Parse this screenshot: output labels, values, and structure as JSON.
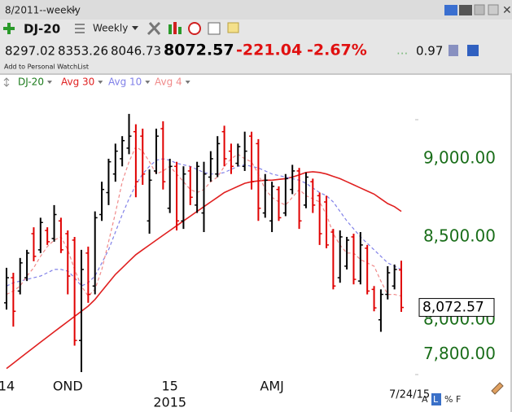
{
  "header": {
    "window_title": "8/2011--weekly",
    "symbol": "DJ-20",
    "period": "Weekly",
    "quote": {
      "open": 8297.02,
      "high": 8353.26,
      "low": 8046.73,
      "close": 8072.57,
      "change": -221.04,
      "change_pct": "-2.67%",
      "ellipsis": "...",
      "ratio": 0.97
    },
    "watchlist_link": "Add to Personal WatchList"
  },
  "chart_data": {
    "type": "ohlc",
    "log_scale": true,
    "ylim": [
      7686,
      9467
    ],
    "yticks": [
      {
        "value": 9000,
        "label": "9,000.00"
      },
      {
        "value": 8500,
        "label": "8,500.00"
      },
      {
        "value": 8000,
        "label": "8,000.00"
      },
      {
        "value": 7800,
        "label": "7,800.00"
      }
    ],
    "tick_color": "#1a6e1a",
    "categories": [
      "14",
      null,
      null,
      null,
      null,
      null,
      null,
      null,
      null,
      "OND",
      null,
      null,
      null,
      null,
      null,
      null,
      null,
      null,
      null,
      null,
      null,
      null,
      null,
      null,
      "15",
      null,
      null,
      null,
      null,
      null,
      null,
      null,
      null,
      null,
      null,
      null,
      null,
      null,
      null,
      "AMJ",
      null,
      null,
      null,
      null,
      null,
      null,
      null,
      null,
      null,
      null,
      null,
      null,
      null,
      null,
      null,
      null,
      null,
      null,
      null
    ],
    "year_labels": [
      null,
      null,
      null,
      null,
      null,
      null,
      null,
      null,
      null,
      null,
      null,
      null,
      null,
      null,
      null,
      null,
      null,
      null,
      null,
      null,
      null,
      null,
      null,
      null,
      "2015",
      null,
      null,
      null,
      null,
      null,
      null,
      null,
      null,
      null,
      null,
      null,
      null,
      null,
      null,
      null,
      null,
      null,
      null,
      null,
      null,
      null,
      null,
      null,
      null,
      null,
      null,
      null,
      null,
      null,
      null,
      null,
      null,
      null,
      null
    ],
    "series": [
      {
        "name": "DJ-20",
        "legend_color": "#1a7a1a",
        "up_color": "#000000",
        "down_color": "#e00000",
        "open": [
          8100,
          8250,
          8170,
          8250,
          8520,
          8420,
          8540,
          8490,
          8600,
          8520,
          8480,
          7880,
          8400,
          8200,
          8640,
          8780,
          8900,
          9000,
          9070,
          9180,
          9150,
          8600,
          8920,
          9200,
          8680,
          8950,
          8600,
          8920,
          8700,
          8650,
          8880,
          8900,
          9180,
          9050,
          8970,
          8950,
          9150,
          9100,
          8650,
          8600,
          8800,
          8650,
          8800,
          8920,
          8700,
          8850,
          8760,
          8720,
          8530,
          8250,
          8320,
          8500,
          8230,
          8430,
          8180,
          8000,
          8150,
          8200,
          8297.02
        ],
        "high": [
          8310,
          8280,
          8370,
          8420,
          8560,
          8620,
          8560,
          8700,
          8620,
          8540,
          8500,
          8420,
          8440,
          8660,
          8850,
          9000,
          9100,
          9150,
          9300,
          9230,
          9200,
          8930,
          9200,
          9250,
          9000,
          8980,
          8950,
          8950,
          8980,
          8980,
          9050,
          9150,
          9220,
          9100,
          9100,
          9180,
          9180,
          9130,
          8900,
          8850,
          8820,
          8900,
          8960,
          8940,
          8910,
          8870,
          8780,
          8760,
          8550,
          8540,
          8500,
          8520,
          8530,
          8450,
          8200,
          8180,
          8320,
          8330,
          8353.26
        ],
        "low": [
          8060,
          7960,
          8150,
          8230,
          8350,
          8400,
          8450,
          8470,
          8400,
          8150,
          7850,
          7700,
          8100,
          8150,
          8600,
          8700,
          8850,
          8950,
          9030,
          8750,
          8830,
          8520,
          8900,
          8800,
          8650,
          8540,
          8550,
          8700,
          8650,
          8530,
          8850,
          8880,
          8950,
          8900,
          8950,
          8920,
          8800,
          8600,
          8620,
          8530,
          8600,
          8630,
          8770,
          8550,
          8680,
          8650,
          8450,
          8430,
          8180,
          8220,
          8300,
          8210,
          8210,
          8150,
          8050,
          7930,
          8120,
          8180,
          8046.73
        ],
        "close": [
          8250,
          8050,
          8340,
          8400,
          8380,
          8590,
          8470,
          8640,
          8420,
          8260,
          7880,
          8300,
          8150,
          8620,
          8800,
          8980,
          9050,
          9120,
          9150,
          8850,
          8900,
          8860,
          9150,
          8850,
          8950,
          8600,
          8900,
          8750,
          8950,
          8900,
          9000,
          9100,
          9000,
          8950,
          9080,
          9050,
          8850,
          8680,
          8860,
          8820,
          8620,
          8870,
          8920,
          8600,
          8880,
          8700,
          8520,
          8450,
          8200,
          8500,
          8480,
          8240,
          8450,
          8170,
          8070,
          8150,
          8280,
          8300,
          8072.57
        ]
      },
      {
        "name": "Avg 30",
        "color": "#e02020",
        "dashed": false,
        "values": [
          7720,
          7750,
          7780,
          7810,
          7840,
          7870,
          7900,
          7930,
          7960,
          7990,
          8020,
          8050,
          8080,
          8120,
          8170,
          8220,
          8270,
          8310,
          8350,
          8390,
          8420,
          8450,
          8480,
          8510,
          8540,
          8570,
          8600,
          8630,
          8660,
          8690,
          8720,
          8750,
          8780,
          8800,
          8820,
          8840,
          8850,
          8855,
          8860,
          8860,
          8865,
          8870,
          8880,
          8895,
          8910,
          8915,
          8910,
          8900,
          8885,
          8870,
          8850,
          8830,
          8810,
          8790,
          8770,
          8740,
          8710,
          8690,
          8660
        ]
      },
      {
        "name": "Avg 10",
        "color": "#8080e8",
        "dashed": true,
        "values": [
          8200,
          8220,
          8230,
          8240,
          8250,
          8260,
          8280,
          8300,
          8300,
          8290,
          8250,
          8200,
          8220,
          8260,
          8340,
          8420,
          8530,
          8640,
          8740,
          8830,
          8900,
          8950,
          8990,
          9000,
          8990,
          8970,
          8960,
          8950,
          8930,
          8910,
          8900,
          8900,
          8910,
          8930,
          8950,
          8960,
          8950,
          8940,
          8920,
          8900,
          8890,
          8880,
          8870,
          8860,
          8840,
          8810,
          8780,
          8760,
          8720,
          8660,
          8600,
          8550,
          8500,
          8460,
          8420,
          8380,
          8340,
          8320,
          8300
        ]
      },
      {
        "name": "Avg 4",
        "color": "#f08a8a",
        "dashed": true,
        "values": [
          8150,
          8170,
          8200,
          8260,
          8310,
          8380,
          8440,
          8480,
          8500,
          8420,
          8300,
          8200,
          8140,
          8180,
          8300,
          8470,
          8650,
          8850,
          8980,
          9080,
          9050,
          8980,
          8900,
          8920,
          8950,
          8900,
          8850,
          8800,
          8780,
          8800,
          8850,
          8880,
          8950,
          9000,
          9030,
          9000,
          8980,
          8900,
          8800,
          8750,
          8720,
          8700,
          8750,
          8800,
          8760,
          8740,
          8720,
          8640,
          8520,
          8450,
          8400,
          8400,
          8360,
          8340,
          8320,
          8230,
          8150,
          8150,
          8140
        ]
      }
    ],
    "last_label": {
      "value": 8072.57,
      "label": "8,072.57"
    }
  },
  "footer": {
    "date": "7/24/15",
    "buttons": [
      "A",
      "L",
      "%",
      "F"
    ]
  }
}
